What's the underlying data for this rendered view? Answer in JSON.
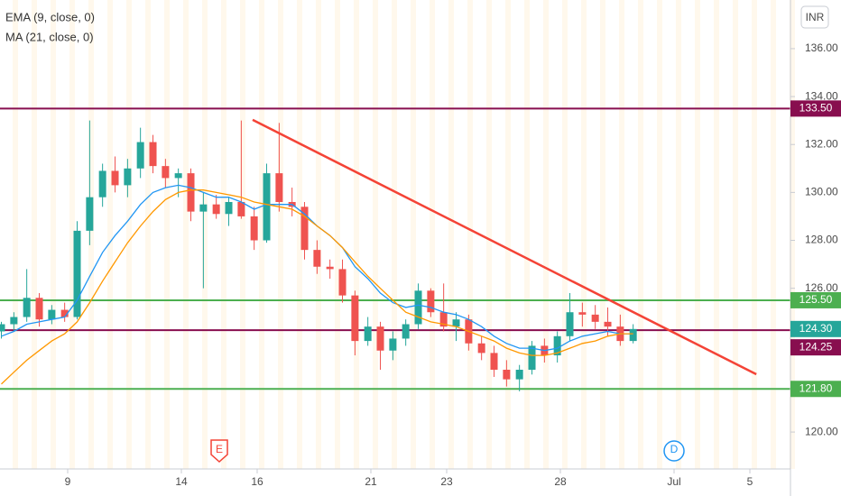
{
  "chart_data": {
    "type": "candlestick",
    "currency": "INR",
    "x": [
      -1.75,
      -1.42,
      -1.08,
      -0.75,
      -0.42,
      -0.08,
      0.25,
      0.58,
      0.92,
      1.25,
      1.58,
      1.92,
      2.25,
      2.58,
      2.92,
      3.25,
      3.58,
      3.92,
      4.25,
      4.58,
      4.92,
      5.25,
      5.58,
      5.92,
      6.25,
      6.58,
      6.92,
      7.25,
      7.58,
      7.92,
      8.25,
      8.58,
      8.92,
      9.25,
      9.58,
      9.92,
      10.25,
      10.58,
      10.92,
      11.25,
      11.58,
      11.92,
      12.25,
      12.58,
      12.92,
      13.25,
      13.58,
      13.92,
      14.25,
      14.58,
      14.92
    ],
    "open": [
      124.2,
      124.5,
      124.8,
      125.6,
      124.7,
      125.1,
      124.8,
      128.4,
      129.8,
      130.9,
      130.3,
      131.0,
      132.1,
      131.1,
      130.6,
      130.8,
      129.2,
      129.5,
      129.1,
      129.6,
      129.0,
      128.0,
      130.8,
      129.6,
      129.4,
      127.6,
      126.9,
      126.8,
      125.7,
      123.8,
      124.4,
      123.4,
      123.9,
      124.5,
      125.9,
      125.0,
      124.4,
      124.7,
      123.7,
      123.3,
      122.6,
      122.2,
      122.6,
      123.6,
      123.2,
      124.0,
      125.0,
      124.9,
      124.6,
      124.4,
      123.8
    ],
    "high": [
      124.6,
      125.0,
      126.8,
      125.8,
      125.3,
      125.4,
      128.8,
      133.0,
      131.2,
      131.5,
      131.4,
      132.7,
      132.4,
      131.4,
      131.0,
      131.0,
      130.0,
      129.9,
      129.8,
      133.0,
      129.4,
      131.2,
      132.9,
      130.2,
      129.6,
      128.0,
      127.2,
      127.2,
      125.9,
      124.8,
      124.6,
      124.2,
      124.7,
      126.2,
      126.0,
      126.2,
      125.0,
      124.9,
      124.0,
      123.6,
      123.0,
      122.8,
      123.8,
      123.9,
      124.2,
      125.8,
      125.4,
      125.3,
      125.2,
      124.9,
      124.5
    ],
    "low": [
      123.9,
      124.2,
      124.6,
      124.4,
      124.5,
      124.6,
      124.7,
      127.8,
      129.4,
      130.0,
      129.8,
      130.6,
      130.8,
      130.2,
      129.8,
      128.8,
      126.0,
      128.9,
      128.6,
      128.9,
      127.6,
      127.9,
      129.2,
      129.0,
      127.2,
      126.6,
      126.4,
      125.4,
      123.2,
      123.6,
      122.6,
      123.0,
      123.6,
      124.3,
      124.8,
      124.2,
      123.8,
      123.4,
      123.0,
      122.3,
      121.9,
      121.7,
      122.4,
      122.9,
      122.9,
      123.8,
      124.4,
      124.3,
      124.0,
      123.6,
      123.7
    ],
    "close": [
      124.5,
      124.8,
      125.6,
      124.7,
      125.1,
      124.8,
      128.4,
      129.8,
      130.9,
      130.3,
      131.0,
      132.1,
      131.1,
      130.6,
      130.8,
      129.2,
      129.5,
      129.1,
      129.6,
      129.0,
      128.0,
      130.8,
      129.6,
      129.4,
      127.6,
      126.9,
      126.8,
      125.7,
      123.8,
      124.4,
      123.4,
      123.9,
      124.5,
      125.9,
      125.0,
      124.4,
      124.7,
      123.7,
      123.3,
      122.6,
      122.2,
      122.6,
      123.6,
      123.2,
      124.0,
      125.0,
      124.9,
      124.6,
      124.4,
      123.8,
      124.3
    ],
    "up_color": "#26a69a",
    "down_color": "#ef5350",
    "series": [
      {
        "name": "EMA (9, close, 0)",
        "color": "#2196f3",
        "values": [
          124.0,
          124.2,
          124.5,
          124.6,
          124.7,
          124.8,
          125.5,
          126.5,
          127.5,
          128.2,
          128.8,
          129.5,
          130.0,
          130.2,
          130.3,
          130.2,
          130.0,
          129.8,
          129.8,
          129.6,
          129.3,
          129.5,
          129.5,
          129.5,
          129.1,
          128.6,
          128.2,
          127.7,
          126.9,
          126.4,
          125.8,
          125.4,
          125.2,
          125.3,
          125.2,
          125.0,
          124.9,
          124.7,
          124.4,
          124.0,
          123.7,
          123.5,
          123.5,
          123.4,
          123.5,
          123.8,
          124.0,
          124.1,
          124.2,
          124.1,
          124.1
        ]
      },
      {
        "name": "MA (21, close, 0)",
        "color": "#ff9800",
        "values": [
          122.0,
          122.5,
          123.0,
          123.4,
          123.8,
          124.1,
          124.6,
          125.4,
          126.3,
          127.1,
          127.9,
          128.6,
          129.2,
          129.7,
          130.0,
          130.1,
          130.1,
          130.0,
          129.9,
          129.8,
          129.6,
          129.5,
          129.4,
          129.3,
          129.0,
          128.6,
          128.2,
          127.7,
          127.1,
          126.5,
          126.0,
          125.5,
          125.0,
          124.8,
          124.6,
          124.5,
          124.4,
          124.2,
          124.0,
          123.8,
          123.5,
          123.3,
          123.2,
          123.2,
          123.3,
          123.5,
          123.7,
          123.8,
          124.0,
          124.1,
          124.1
        ]
      }
    ],
    "xlim": [
      -1.786,
      19.071
    ],
    "ylim": [
      118.46,
      138.03
    ],
    "xticks": [
      {
        "value": 0,
        "label": "9"
      },
      {
        "value": 3,
        "label": "14"
      },
      {
        "value": 5,
        "label": "16"
      },
      {
        "value": 8,
        "label": "21"
      },
      {
        "value": 10,
        "label": "23"
      },
      {
        "value": 13,
        "label": "28"
      },
      {
        "value": 16,
        "label": "Jul"
      },
      {
        "value": 18,
        "label": "5"
      }
    ],
    "yticks": [
      {
        "value": 120,
        "label": "120.00"
      },
      {
        "value": 126,
        "label": "126.00"
      },
      {
        "value": 128,
        "label": "128.00"
      },
      {
        "value": 130,
        "label": "130.00"
      },
      {
        "value": 132,
        "label": "132.00"
      },
      {
        "value": 134,
        "label": "134.00"
      },
      {
        "value": 136,
        "label": "136.00"
      }
    ],
    "levels": [
      {
        "value": 133.5,
        "label": "133.50",
        "color": "#880e4f"
      },
      {
        "value": 125.5,
        "label": "125.50",
        "color": "#4caf50"
      },
      {
        "value": 124.25,
        "label": "124.25",
        "color": "#880e4f"
      },
      {
        "value": 121.8,
        "label": "121.80",
        "color": "#4caf50"
      }
    ],
    "last_price": {
      "value": 124.3,
      "label": "124.30",
      "color": "#26a69a"
    },
    "trendline": {
      "x": [
        4.88,
        18.17
      ],
      "values": [
        133.03,
        122.41
      ],
      "color": "#f44336"
    },
    "events": [
      {
        "x": 4,
        "label": "E",
        "color": "#f44336"
      },
      {
        "x": 16,
        "label": "D",
        "color": "#2196f3"
      }
    ]
  }
}
